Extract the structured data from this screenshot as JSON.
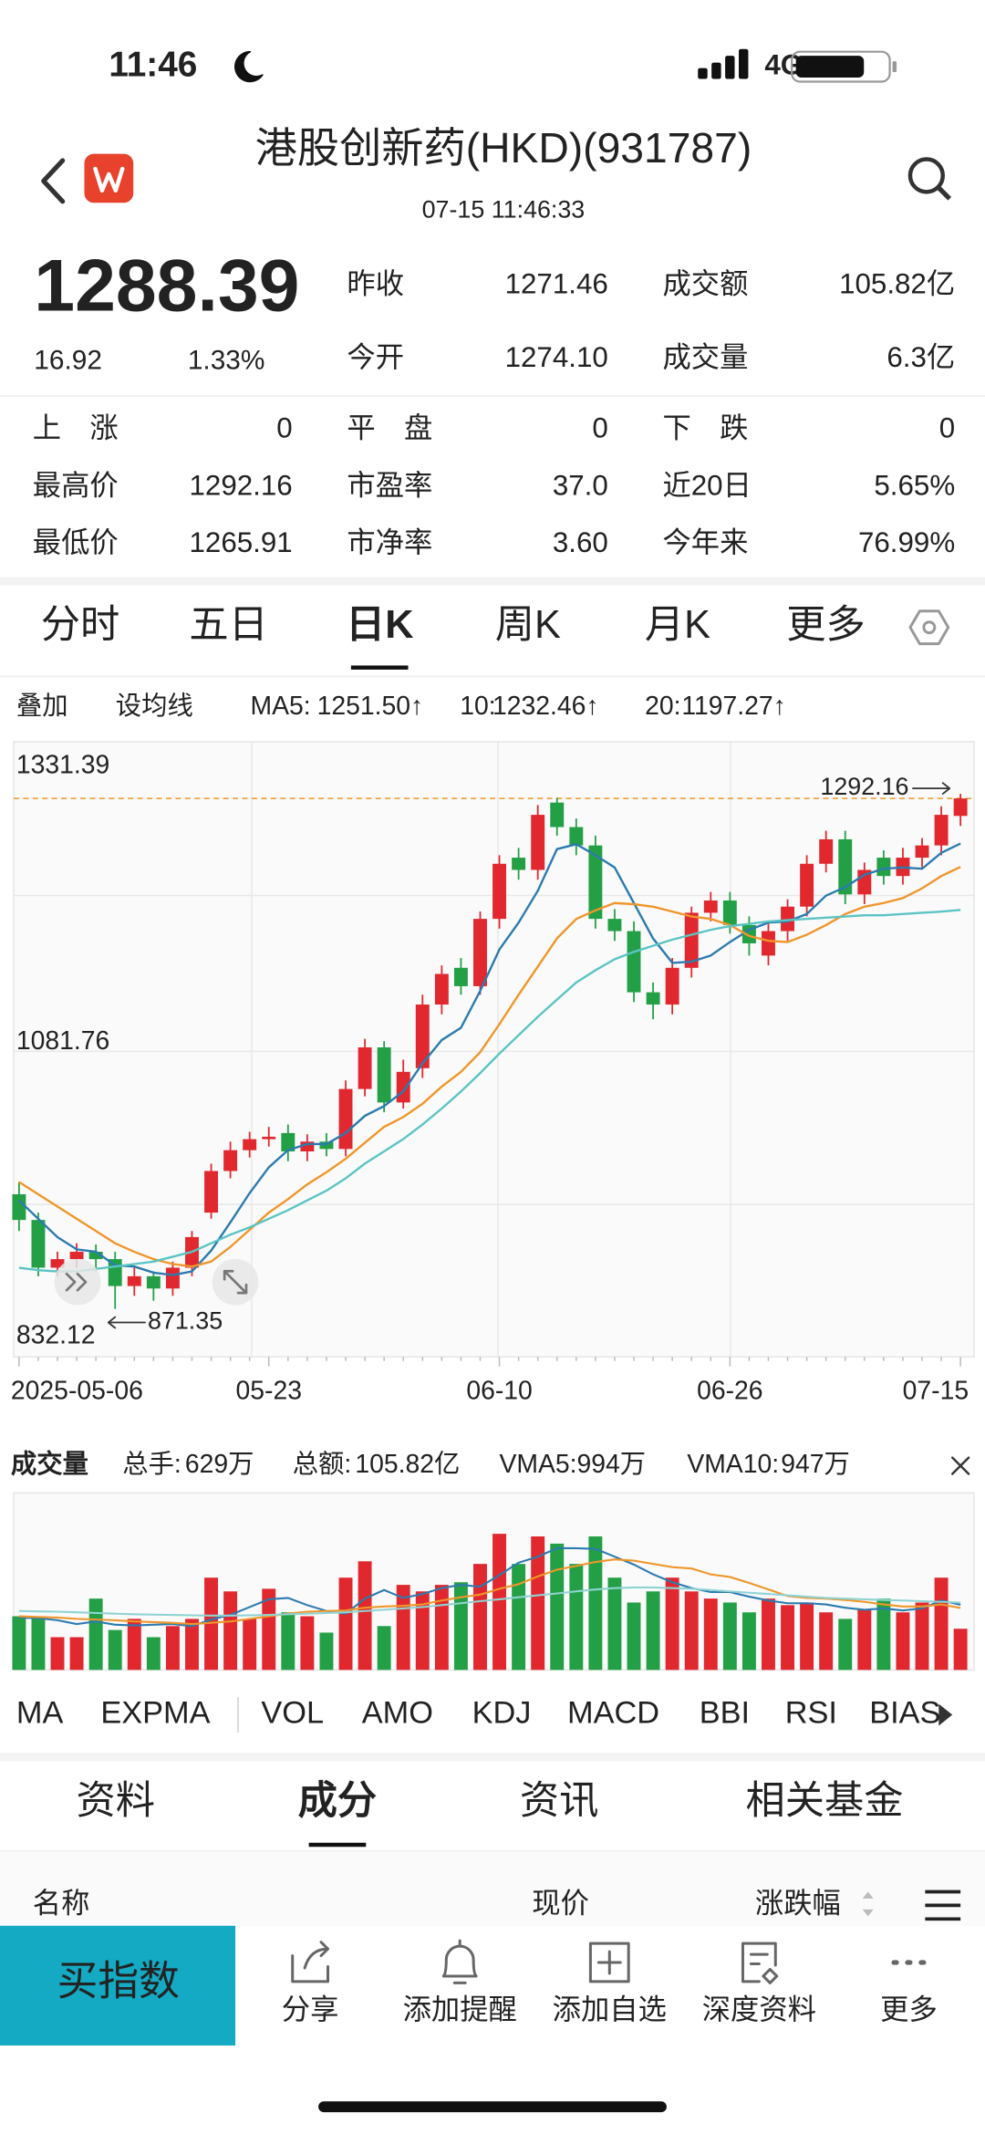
{
  "status_bar": {
    "time": "11:46",
    "network": "4G"
  },
  "header": {
    "title": "港股创新药(HKD)(931787)",
    "datetime": "07-15 11:46:33"
  },
  "quote": {
    "price": "1288.39",
    "change": "16.92",
    "change_pct": "1.33%",
    "stats": [
      [
        {
          "label": "昨收",
          "value": "1271.46"
        },
        {
          "label": "成交额",
          "value": "105.82亿"
        }
      ],
      [
        {
          "label": "今开",
          "value": "1274.10"
        },
        {
          "label": "成交量",
          "value": "6.3亿"
        }
      ]
    ],
    "grid": [
      [
        {
          "label": "上　涨",
          "value": "0"
        },
        {
          "label": "平　盘",
          "value": "0"
        },
        {
          "label": "下　跌",
          "value": "0"
        }
      ],
      [
        {
          "label": "最高价",
          "value": "1292.16"
        },
        {
          "label": "市盈率",
          "value": "37.0"
        },
        {
          "label": "近20日",
          "value": "5.65%"
        }
      ],
      [
        {
          "label": "最低价",
          "value": "1265.91"
        },
        {
          "label": "市净率",
          "value": "3.60"
        },
        {
          "label": "今年来",
          "value": "76.99%"
        }
      ]
    ]
  },
  "period_tabs": {
    "items": [
      "分时",
      "五日",
      "日K",
      "周K",
      "月K",
      "更多"
    ],
    "active": 2
  },
  "ma_settings": {
    "buttons": [
      "叠加",
      "设均线"
    ],
    "legend": [
      {
        "label": "MA5:",
        "value": "1251.50↑",
        "color": "#2b7bb0"
      },
      {
        "label": "10:",
        "value": "1232.46↑",
        "color": "#f0962a"
      },
      {
        "label": "20:",
        "value": "1197.27↑",
        "color": "#5cc4c4"
      }
    ]
  },
  "kline": {
    "type": "candlestick",
    "up_color": "#e0282e",
    "down_color": "#23a045",
    "ylim": [
      832.12,
      1331.39
    ],
    "yticks": [
      832.12,
      1081.76,
      1331.39
    ],
    "categories": [
      "2025-05-06",
      null,
      null,
      null,
      null,
      null,
      null,
      null,
      null,
      null,
      null,
      null,
      null,
      "05-23",
      null,
      null,
      null,
      null,
      null,
      null,
      null,
      null,
      null,
      null,
      null,
      "06-10",
      null,
      null,
      null,
      null,
      null,
      null,
      null,
      null,
      null,
      null,
      null,
      "06-26",
      null,
      null,
      null,
      null,
      null,
      null,
      null,
      null,
      null,
      null,
      null,
      "07-15"
    ],
    "open": [
      965,
      944,
      905,
      912,
      918,
      912,
      890,
      898,
      888,
      905,
      950,
      984,
      1001,
      1010,
      1015,
      1000,
      1008,
      1002,
      1051,
      1085,
      1040,
      1068,
      1120,
      1150,
      1135,
      1190,
      1240,
      1230,
      1285,
      1265,
      1250,
      1190,
      1180,
      1130,
      1120,
      1150,
      1195,
      1205,
      1185,
      1160,
      1180,
      1200,
      1235,
      1255,
      1210,
      1240,
      1225,
      1240,
      1250,
      1274.1
    ],
    "high": [
      975,
      950,
      918,
      925,
      924,
      918,
      905,
      902,
      910,
      935,
      990,
      1008,
      1016,
      1020,
      1022,
      1014,
      1015,
      1058,
      1092,
      1090,
      1075,
      1128,
      1152,
      1158,
      1196,
      1242,
      1248,
      1283,
      1289,
      1272,
      1258,
      1198,
      1188,
      1138,
      1158,
      1200,
      1212,
      1212,
      1192,
      1186,
      1206,
      1242,
      1262,
      1262,
      1236,
      1246,
      1248,
      1256,
      1282,
      1292.16
    ],
    "low": [
      935,
      898,
      898,
      905,
      902,
      871.35,
      882,
      878,
      882,
      898,
      945,
      978,
      995,
      1004,
      992,
      992,
      996,
      996,
      1045,
      1032,
      1035,
      1060,
      1112,
      1128,
      1128,
      1182,
      1222,
      1222,
      1258,
      1242,
      1182,
      1172,
      1122,
      1108,
      1112,
      1142,
      1188,
      1178,
      1160,
      1152,
      1172,
      1192,
      1228,
      1202,
      1202,
      1218,
      1218,
      1232,
      1242,
      1265.91
    ],
    "close": [
      944,
      905,
      912,
      918,
      912,
      890,
      898,
      888,
      905,
      930,
      984,
      1001,
      1010,
      1012,
      1000,
      1008,
      1002,
      1051,
      1085,
      1040,
      1065,
      1120,
      1145,
      1135,
      1190,
      1235,
      1230,
      1275,
      1265,
      1250,
      1190,
      1180,
      1130,
      1120,
      1150,
      1195,
      1205,
      1185,
      1170,
      1180,
      1200,
      1235,
      1255,
      1210,
      1230,
      1225,
      1240,
      1250,
      1275,
      1288.39
    ],
    "lines": [
      {
        "color": "#2b7bb0",
        "values": [
          960,
          945,
          930,
          920,
          918,
          907,
          906,
          901,
          899,
          902,
          919,
          942,
          966,
          987,
          1001,
          1006,
          1006,
          1015,
          1029,
          1037,
          1049,
          1072,
          1091,
          1101,
          1131,
          1165,
          1187,
          1213,
          1247,
          1251,
          1242,
          1232,
          1203,
          1174,
          1154,
          1155,
          1160,
          1171,
          1181,
          1187,
          1188,
          1194,
          1209,
          1216,
          1226,
          1231,
          1232,
          1231,
          1244,
          1251.5
        ]
      },
      {
        "color": "#f0962a",
        "values": [
          975,
          965,
          955,
          945,
          935,
          925,
          918,
          912,
          908,
          906,
          910,
          922,
          936,
          950,
          961,
          973,
          983,
          994,
          1007,
          1020,
          1028,
          1039,
          1053,
          1065,
          1081,
          1104,
          1128,
          1151,
          1174,
          1190,
          1197,
          1203,
          1202,
          1200,
          1196,
          1192,
          1190,
          1185,
          1176,
          1172,
          1171,
          1177,
          1185,
          1194,
          1200,
          1203,
          1207,
          1215,
          1225,
          1232.46
        ]
      },
      {
        "color": "#5cc4c4",
        "values": [
          905,
          903,
          902,
          902,
          904,
          906,
          908,
          910,
          914,
          918,
          925,
          932,
          938,
          945,
          952,
          960,
          968,
          978,
          990,
          1000,
          1010,
          1022,
          1035,
          1049,
          1064,
          1080,
          1095,
          1110,
          1124,
          1138,
          1148,
          1157,
          1163,
          1168,
          1173,
          1177,
          1181,
          1184,
          1186,
          1188,
          1189,
          1190,
          1191,
          1192,
          1193,
          1193,
          1194,
          1195,
          1196,
          1197.27
        ]
      }
    ],
    "max_label": "1292.16",
    "min_label": "871.35"
  },
  "volume": {
    "title": "成交量",
    "stats": [
      {
        "label": "总手:",
        "value": "629万"
      },
      {
        "label": "总额:",
        "value": "105.82亿"
      }
    ],
    "legend": [
      {
        "label": "VMA5:",
        "value": "994万",
        "color": "#2b7bb0"
      },
      {
        "label": "VMA10:",
        "value": "947万",
        "color": "#f0962a"
      }
    ],
    "values": [
      820,
      780,
      500,
      500,
      1090,
      610,
      780,
      500,
      670,
      780,
      1410,
      1200,
      780,
      1240,
      880,
      820,
      570,
      1410,
      1660,
      670,
      1300,
      1200,
      1300,
      1340,
      1620,
      2080,
      1620,
      2040,
      1930,
      1620,
      2040,
      1410,
      1030,
      1200,
      1410,
      1200,
      1090,
      1030,
      880,
      1090,
      990,
      1030,
      880,
      780,
      920,
      1090,
      880,
      1030,
      1410,
      629
    ],
    "lines": [
      {
        "color": "#2b7bb0",
        "values": [
          800,
          790,
          760,
          700,
          740,
          690,
          680,
          690,
          700,
          670,
          770,
          840,
          960,
          1080,
          1100,
          990,
          900,
          860,
          1090,
          1220,
          1100,
          1160,
          1250,
          1300,
          1270,
          1450,
          1640,
          1730,
          1860,
          1860,
          1850,
          1730,
          1610,
          1460,
          1340,
          1250,
          1190,
          1190,
          1120,
          1060,
          1020,
          1020,
          1000,
          950,
          920,
          940,
          910,
          940,
          1060,
          994
        ]
      },
      {
        "color": "#f0962a",
        "values": [
          820,
          810,
          800,
          780,
          770,
          760,
          740,
          730,
          720,
          700,
          720,
          740,
          780,
          820,
          860,
          890,
          900,
          910,
          950,
          970,
          980,
          1000,
          1060,
          1110,
          1150,
          1240,
          1310,
          1430,
          1530,
          1590,
          1650,
          1690,
          1670,
          1620,
          1570,
          1550,
          1460,
          1420,
          1330,
          1230,
          1130,
          1100,
          1090,
          1070,
          1040,
          1000,
          970,
          970,
          1000,
          947
        ]
      },
      {
        "color": "#8fd3d3",
        "values": [
          900,
          895,
          890,
          880,
          870,
          860,
          850,
          845,
          840,
          835,
          830,
          830,
          835,
          840,
          850,
          860,
          870,
          880,
          900,
          920,
          940,
          960,
          990,
          1020,
          1050,
          1080,
          1110,
          1140,
          1170,
          1200,
          1230,
          1250,
          1260,
          1260,
          1250,
          1240,
          1220,
          1200,
          1180,
          1160,
          1140,
          1120,
          1100,
          1090,
          1080,
          1070,
          1060,
          1050,
          1040,
          1030
        ]
      }
    ]
  },
  "indicators": {
    "items": [
      "MA",
      "EXPMA",
      "VOL",
      "AMO",
      "KDJ",
      "MACD",
      "BBI",
      "RSI",
      "BIAS"
    ],
    "active": [
      0,
      2
    ]
  },
  "bottom_tabs": {
    "items": [
      "资料",
      "成分",
      "资讯",
      "相关基金"
    ],
    "active": 1
  },
  "list_header": [
    "名称",
    "现价",
    "涨跌幅"
  ],
  "toolbar": {
    "primary": "买指数",
    "items": [
      "分享",
      "添加提醒",
      "添加自选",
      "深度资料",
      "更多"
    ]
  }
}
